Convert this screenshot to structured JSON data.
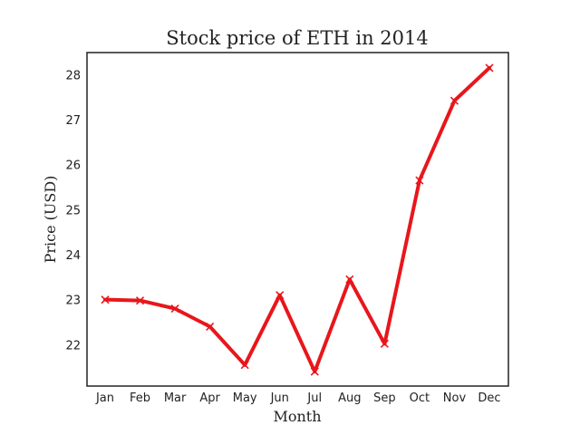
{
  "chart_data": {
    "type": "line",
    "title": "Stock price of ETH in 2014",
    "xlabel": "Month",
    "ylabel": "Price (USD)",
    "categories": [
      "Jan",
      "Feb",
      "Mar",
      "Apr",
      "May",
      "Jun",
      "Jul",
      "Aug",
      "Sep",
      "Oct",
      "Nov",
      "Dec"
    ],
    "series": [
      {
        "values": [
          23.0,
          22.98,
          22.8,
          22.4,
          21.55,
          23.1,
          21.4,
          23.45,
          22.02,
          25.65,
          27.42,
          28.15
        ],
        "color": "#e8161b",
        "marker": "x"
      }
    ],
    "yticks": [
      22,
      23,
      24,
      25,
      26,
      27,
      28
    ],
    "ylim": [
      21.08,
      28.49
    ],
    "grid": false,
    "legend": "none"
  }
}
